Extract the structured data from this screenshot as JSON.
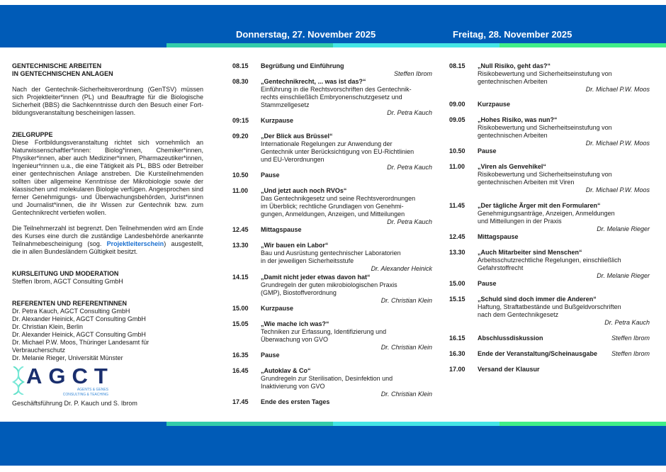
{
  "header": {
    "day1": "Donnerstag, 27. November 2025",
    "day2": "Freitag, 28. November 2025",
    "colors": {
      "band": "#005bb7",
      "strip1": "#33ccaa",
      "strip2": "#44e5e5",
      "strip3": "#40ee88"
    }
  },
  "intro": {
    "heading1": "GENTECHNISCHE ARBEITEN",
    "heading2": "IN GENTECHNISCHEN ANLAGEN",
    "text": "Nach der Gentechnik-Sicherheitsverordnung (GenTSV) müssen sich Projektleiter*innen (PL) und Beauftragte für die Biologische Sicherheit (BBS) die Sachkenntnisse durch den Besuch einer Fort-bildungsveranstaltung bescheinigen lassen.",
    "target_heading": "ZIELGRUPPE",
    "target_text": "Diese Fortbildungsveranstaltung richtet sich vornehmlich an Naturwissenschaftler*innen: Biolog*innen, Chemiker*innen, Physiker*innen, aber auch Mediziner*innen, Pharmazeutiker*innen, Ingenieur*rinnen u.a., die eine Tätigkeit als PL, BBS oder Betreiber einer gentechnischen Anlage anstreben. Die Kursteilnehmenden sollten über allgemeine Kenntnisse der Mikrobiologie sowie der klassischen und molekularen Biologie verfügen. Angesprochen sind ferner Genehmigungs- und Überwachungsbehörden, Jurist*innen und Journalist*innen, die ihr Wissen zur Gentechnik bzw. zum Gentechnikrecht vertiefen wollen.",
    "limit_text_before": "Die Teilnehmerzahl ist begrenzt. Den Teilnehmenden wird am Ende des Kurses eine durch die zuständige Landesbehörde anerkannte Teilnahmebescheinigung (sog. ",
    "limit_link": "Projektleiterschein",
    "limit_text_after": ") ausgestellt, die in allen Bundesländern Gültigkeit besitzt.",
    "lead_heading": "KURSLEITUNG UND MODERATION",
    "lead_text": "Steffen Ibrom, AGCT Consulting GmbH",
    "speakers_heading": "REFERENTEN UND REFERENTINNEN",
    "speakers": [
      "Dr. Petra Kauch, AGCT Consulting GmbH",
      "Dr. Alexander Heinick, AGCT Consulting GmbH",
      "Dr. Christian Klein, Berlin",
      "Dr. Alexander Heinick, AGCT Consulting GmbH",
      "Dr. Michael P.W. Moos, Thüringer Landesamt für Verbraucherschutz",
      "Dr. Melanie Rieger, Universität Münster"
    ],
    "logo": {
      "name": "AGCT",
      "sub1": "AGENTS & GENES",
      "sub2": "CONSULTING & TEACHING"
    },
    "management": "Geschäftsführung Dr. P. Kauch und S. Ibrom"
  },
  "day1_items": [
    {
      "time": "08.15",
      "title": "Begrüßung und Einführung",
      "desc": [],
      "speaker": "Steffen Ibrom"
    },
    {
      "time": "08.30",
      "title": "„Gentechnikrecht, ... was ist das?“",
      "desc": [
        "Einführung in die Rechtsvorschriften des Gentechnik-",
        "rechts einschließlich Embryonenschutzgesetz und",
        "Stammzellgesetz"
      ],
      "speaker": "Dr. Petra Kauch"
    },
    {
      "time": "09:15",
      "title": "Kurzpause",
      "desc": [],
      "speaker": ""
    },
    {
      "time": "09.20",
      "title": "„Der Blick aus Brüssel“",
      "desc": [
        "Internationale Regelungen zur Anwendung der",
        "Gentechnik unter Berücksichtigung von EU-Richtlinien",
        "und EU-Verordnungen"
      ],
      "speaker": "Dr. Petra Kauch"
    },
    {
      "time": "10.50",
      "title": "Pause",
      "desc": [],
      "speaker": ""
    },
    {
      "time": "11.00",
      "title": "„Und jetzt auch noch RVOs“",
      "desc": [
        "Das Gentechnikgesetz und seine Rechtsverordnungen",
        "im Überblick; rechtliche Grundlagen von Genehmi-",
        "gungen, Anmeldungen, Anzeigen, und Mitteilungen"
      ],
      "speaker": "Dr. Petra Kauch"
    },
    {
      "time": "12.45",
      "title": "Mittagspause",
      "desc": [],
      "speaker": ""
    },
    {
      "time": "13.30",
      "title": "„Wir bauen ein Labor“",
      "desc": [
        "Bau und Ausrüstung gentechnischer Laboratorien",
        "in der jeweiligen Sicherheitsstufe"
      ],
      "speaker": "Dr. Alexander Heinick"
    },
    {
      "time": "14.15",
      "title": "„Damit nicht jeder etwas davon hat“",
      "desc": [
        "Grundregeln der guten mikrobiologischen Praxis",
        "(GMP), Biostoffverordnung"
      ],
      "speaker": "Dr. Christian Klein"
    },
    {
      "time": "15.00",
      "title": "Kurzpause",
      "desc": [],
      "speaker": ""
    },
    {
      "time": "15.05",
      "title": "„Wie mache ich was?“",
      "desc": [
        "Techniken zur Erfassung, Identifizierung und",
        "Überwachung von GVO"
      ],
      "speaker": "Dr. Christian Klein"
    },
    {
      "time": "16.35",
      "title": "Pause",
      "desc": [],
      "speaker": ""
    },
    {
      "time": "16.45",
      "title": "„Autoklav & Co“",
      "desc": [
        "Grundregeln zur Sterilisation, Desinfektion und",
        "Inaktivierung von GVO"
      ],
      "speaker": "Dr. Christian Klein"
    },
    {
      "time": "17.45",
      "title": "Ende des ersten Tages",
      "desc": [],
      "speaker": ""
    }
  ],
  "day2_items": [
    {
      "time": "08.15",
      "title": "„Null Risiko, geht das?“",
      "desc": [
        "Risikobewertung und Sicherheitseinstufung von",
        "gentechnischen Arbeiten"
      ],
      "speaker": "Dr. Michael P.W. Moos"
    },
    {
      "time": "09.00",
      "title": "Kurzpause",
      "desc": [],
      "speaker": ""
    },
    {
      "time": "09.05",
      "title": "„Hohes Risiko, was nun?“",
      "desc": [
        "Risikobewertung und Sicherheitseinstufung von",
        "gentechnischen Arbeiten"
      ],
      "speaker": "Dr. Michael P.W. Moos"
    },
    {
      "time": "10.50",
      "title": "Pause",
      "desc": [],
      "speaker": ""
    },
    {
      "time": "11.00",
      "title": "„Viren als Genvehikel“",
      "desc": [
        "Risikobewertung und Sicherheitseinstufung von",
        "gentechnischen Arbeiten mit Viren"
      ],
      "speaker": "Dr. Michael P.W. Moos"
    },
    {
      "time": "11.45",
      "title": "„Der tägliche Ärger mit den Formularen“",
      "desc": [
        "Genehmigungsanträge, Anzeigen, Anmeldungen",
        "und Mitteilungen in der Praxis"
      ],
      "speaker": "Dr. Melanie Rieger"
    },
    {
      "time": "12.45",
      "title": "Mittagspause",
      "desc": [],
      "speaker": ""
    },
    {
      "time": "13.30",
      "title": "„Auch Mitarbeiter sind Menschen“",
      "desc": [
        "Arbeitsschutzrechtliche Regelungen, einschließlich",
        "Gefahrstoffrecht"
      ],
      "speaker": "Dr. Melanie Rieger"
    },
    {
      "time": "15.00",
      "title": "Pause",
      "desc": [],
      "speaker": ""
    },
    {
      "time": "15.15",
      "title": "„Schuld sind doch immer die Anderen“",
      "desc": [
        "Haftung, Straftatbestände und Bußgeldvorschriften",
        "nach dem Gentechnikgesetz"
      ],
      "speaker": "Dr. Petra Kauch"
    },
    {
      "time": "16.15",
      "title": "Abschlussdiskussion",
      "desc": [],
      "speaker_inline": "Steffen Ibrom"
    },
    {
      "time": "16.30",
      "title": "Ende der Veranstaltung/Scheinausgabe",
      "desc": [],
      "speaker_inline": "Steffen Ibrom"
    },
    {
      "time": "17.00",
      "title": "Versand der Klausur",
      "desc": [],
      "speaker": ""
    }
  ]
}
